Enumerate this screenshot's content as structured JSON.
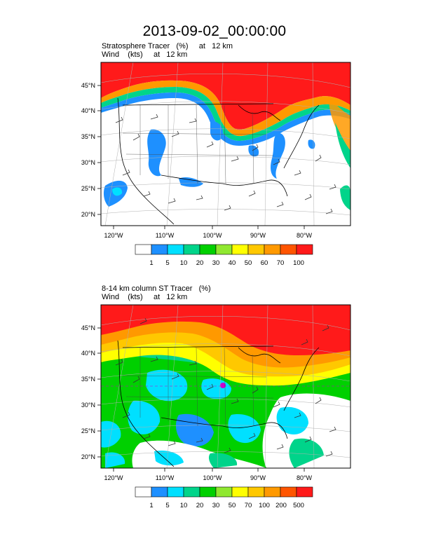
{
  "title": "2013-09-02_00:00:00",
  "colors": {
    "scale": [
      "#ffffff",
      "#1e90ff",
      "#00e0ff",
      "#00d48a",
      "#00d000",
      "#90e830",
      "#ffff00",
      "#ffc800",
      "#ff9900",
      "#ff5500",
      "#ff1a1a"
    ]
  },
  "panels": [
    {
      "line1": "Stratosphere Tracer   (%)     at   12 km",
      "line2": "Wind    (kts)     at   12 km",
      "lat_labels": [
        "45°N",
        "40°N",
        "35°N",
        "30°N",
        "25°N",
        "20°N"
      ],
      "lon_labels": [
        "120°W",
        "110°W",
        "100°W",
        "90°W",
        "80°W"
      ],
      "colorbar_labels": [
        "1",
        "5",
        "10",
        "20",
        "30",
        "40",
        "50",
        "60",
        "70",
        "100"
      ]
    },
    {
      "line1": "8-14 km column ST Tracer   (%)",
      "line2": "Wind    (kts)     at   12 km",
      "lat_labels": [
        "45°N",
        "40°N",
        "35°N",
        "30°N",
        "25°N",
        "20°N"
      ],
      "lon_labels": [
        "120°W",
        "110°W",
        "100°W",
        "90°W",
        "80°W"
      ],
      "colorbar_labels": [
        "1",
        "5",
        "10",
        "20",
        "30",
        "50",
        "70",
        "100",
        "200",
        "500"
      ]
    }
  ]
}
